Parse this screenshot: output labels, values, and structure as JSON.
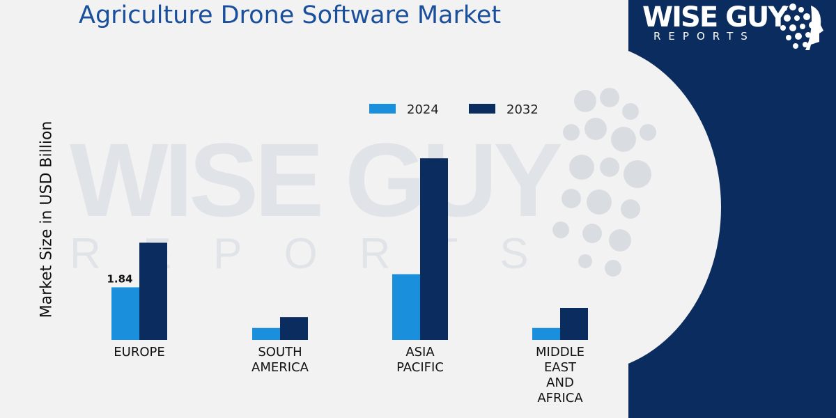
{
  "chart_data": {
    "type": "bar",
    "title": "Agriculture Drone Software Market",
    "ylabel": "Market Size in USD Billion",
    "xlabel": "",
    "categories": [
      "EUROPE",
      "SOUTH AMERICA",
      "ASIA PACIFIC",
      "MIDDLE EAST AND AFRICA"
    ],
    "category_lines": [
      [
        "EUROPE"
      ],
      [
        "SOUTH",
        "AMERICA"
      ],
      [
        "ASIA",
        "PACIFIC"
      ],
      [
        "MIDDLE",
        "EAST",
        "AND",
        "AFRICA"
      ]
    ],
    "series": [
      {
        "name": "2024",
        "values": [
          1.84,
          0.42,
          2.3,
          0.42
        ],
        "color": "#1a8fdc"
      },
      {
        "name": "2032",
        "values": [
          3.4,
          0.8,
          6.35,
          1.12
        ],
        "color": "#0b2c5e"
      }
    ],
    "data_labels": [
      {
        "series": 0,
        "index": 0,
        "text": "1.84"
      }
    ],
    "ylim": [
      0,
      7.5
    ],
    "grid": false,
    "legend_position": "top"
  },
  "logo": {
    "line1": "WISE GUY",
    "line2": "REPORTS"
  },
  "colors": {
    "panel": "#0b2c5e",
    "background": "#f2f2f2",
    "title": "#1a4f9c"
  }
}
